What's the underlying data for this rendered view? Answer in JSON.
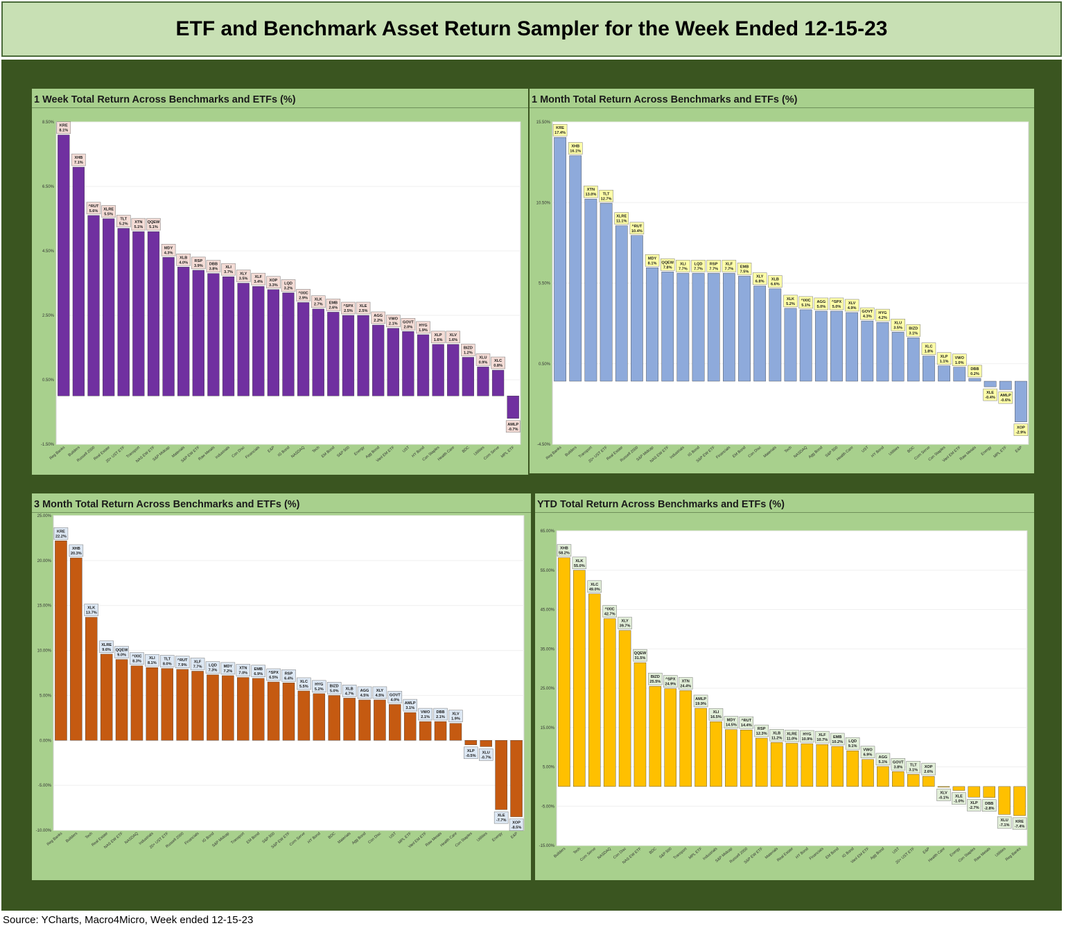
{
  "title": "ETF and Benchmark Asset Return Sampler for the Week Ended 12-15-23",
  "source": "Source: YCharts, Macro4Micro, Week ended 12-15-23",
  "colors": {
    "frame_bg": "#3a5520",
    "panel_bg": "#a8d08d",
    "header_bg": "#c8e0b4"
  },
  "chart_data": [
    {
      "type": "bar",
      "title": "1 Week Total Return Across Benchmarks and ETFs (%)",
      "bar_color": "#7030a0",
      "label_bg": "#f4dcd6",
      "yticks": [
        "8.50%",
        "6.50%",
        "4.50%",
        "2.50%",
        "0.50%",
        "-1.50%"
      ],
      "ylim": [
        -1.5,
        8.5
      ],
      "categories": [
        "Reg Banks",
        "Builders",
        "Russell 2000",
        "Real Estate",
        "20+ UST ETF",
        "Transport",
        "NAS EW ETF",
        "S&P Midcap",
        "Materials",
        "S&P EW ETF",
        "Raw Metals",
        "Industrials",
        "Con Disc",
        "Financials",
        "E&P",
        "IG Bond",
        "NASDAQ",
        "Tech",
        "EM Bond",
        "S&P 500",
        "Energy",
        "Agg Bond",
        "Vanl EM ETF",
        "UST",
        "HY Bond",
        "Con Staples",
        "Health Care",
        "BDC",
        "Utilities",
        "Com Serve",
        "MPL ETF"
      ],
      "tickers": [
        "KRE",
        "XHB",
        "^RUT",
        "XLRE",
        "TLT",
        "XTN",
        "QQEW",
        "MDY",
        "XLB",
        "RSP",
        "DBB",
        "XLI",
        "XLY",
        "XLF",
        "XOP",
        "LQD",
        "^IXIC",
        "XLK",
        "EMB",
        "^SPX",
        "XLE",
        "AGG",
        "VWO",
        "GOVT",
        "HYG",
        "XLP",
        "XLV",
        "BIZD",
        "XLU",
        "XLC",
        "AMLP"
      ],
      "values": [
        8.1,
        7.1,
        5.6,
        5.5,
        5.2,
        5.1,
        5.1,
        4.3,
        4.0,
        3.9,
        3.8,
        3.7,
        3.5,
        3.4,
        3.3,
        3.2,
        2.9,
        2.7,
        2.6,
        2.5,
        2.5,
        2.2,
        2.1,
        2.0,
        1.9,
        1.6,
        1.6,
        1.2,
        0.9,
        0.8,
        -0.7
      ],
      "value_labels": [
        "8.1%",
        "7.1%",
        "5.6%",
        "5.5%",
        "5.2%",
        "5.1%",
        "5.1%",
        "4.3%",
        "4.0%",
        "3.9%",
        "3.8%",
        "3.7%",
        "3.5%",
        "3.4%",
        "3.3%",
        "3.2%",
        "2.9%",
        "2.7%",
        "2.6%",
        "2.5%",
        "2.5%",
        "2.2%",
        "2.1%",
        "2.0%",
        "1.9%",
        "1.6%",
        "1.6%",
        "1.2%",
        "0.9%",
        "0.8%",
        "-0.7%"
      ]
    },
    {
      "type": "bar",
      "title": "1 Month Total Return Across Benchmarks and ETFs (%)",
      "bar_color": "#8eaadb",
      "label_bg": "#ffffa8",
      "yticks": [
        "15.50%",
        "10.50%",
        "5.50%",
        "0.50%",
        "-4.50%"
      ],
      "ylim": [
        -4.5,
        18.5
      ],
      "categories": [
        "Reg Banks",
        "Builders",
        "Transport",
        "20+ UST ETF",
        "Real Estate",
        "Russell 2000",
        "S&P Midcap",
        "NAS EW ETF",
        "Industrials",
        "IG Bond",
        "S&P EW ETF",
        "Financials",
        "EM Bond",
        "Con Disc",
        "Materials",
        "Tech",
        "NASDAQ",
        "Agg Bond",
        "S&P 500",
        "Health Care",
        "UST",
        "HY Bond",
        "Utilities",
        "BDC",
        "Com Serve",
        "Con Staples",
        "Vanl EM ETF",
        "Raw Metals",
        "Energy",
        "MPL ETF",
        "E&P"
      ],
      "tickers": [
        "KRE",
        "XHB",
        "XTN",
        "TLT",
        "XLRE",
        "^RUT",
        "MDY",
        "QQEW",
        "XLI",
        "LQD",
        "RSP",
        "XLF",
        "EMB",
        "XLY",
        "XLB",
        "XLK",
        "^IXIC",
        "AGG",
        "^SPX",
        "XLV",
        "GOVT",
        "HYG",
        "XLU",
        "BIZD",
        "XLC",
        "XLP",
        "VWO",
        "DBB",
        "XLE",
        "AMLP",
        "XOP"
      ],
      "values": [
        17.4,
        16.1,
        13.0,
        12.7,
        11.1,
        10.4,
        8.1,
        7.8,
        7.7,
        7.7,
        7.7,
        7.7,
        7.5,
        6.8,
        6.6,
        5.2,
        5.1,
        5.0,
        5.0,
        4.9,
        4.3,
        4.2,
        3.5,
        3.1,
        1.8,
        1.1,
        1.0,
        0.2,
        -0.4,
        -0.6,
        -2.9
      ],
      "value_labels": [
        "17.4%",
        "16.1%",
        "13.0%",
        "12.7%",
        "11.1%",
        "10.4%",
        "8.1%",
        "7.8%",
        "7.7%",
        "7.7%",
        "7.7%",
        "7.7%",
        "7.5%",
        "6.8%",
        "6.6%",
        "5.2%",
        "5.1%",
        "5.0%",
        "5.0%",
        "4.9%",
        "4.3%",
        "4.2%",
        "3.5%",
        "3.1%",
        "1.8%",
        "1.1%",
        "1.0%",
        "0.2%",
        "-0.4%",
        "-0.6%",
        "-2.9%"
      ]
    },
    {
      "type": "bar",
      "title": "3 Month Total Return Across Benchmarks and ETFs (%)",
      "bar_color": "#c55a11",
      "label_bg": "#dde8f4",
      "yticks": [
        "25.00%",
        "20.00%",
        "15.00%",
        "10.00%",
        "5.00%",
        "0.00%",
        "-5.00%",
        "-10.00%"
      ],
      "ylim": [
        -10,
        25
      ],
      "categories": [
        "Reg Banks",
        "Builders",
        "Tech",
        "Real Estate",
        "NAS EW ETF",
        "NASDAQ",
        "Industrials",
        "20+ UST ETF",
        "Russell 2000",
        "Financials",
        "IG Bond",
        "S&P Midcap",
        "Transport",
        "EM Bond",
        "S&P 500",
        "S&P EW ETF",
        "Com Serve",
        "HY Bond",
        "BDC",
        "Materials",
        "Agg Bond",
        "Con Disc",
        "UST",
        "MPL ETF",
        "Vanl EM ETF",
        "Raw Metals",
        "Health Care",
        "Con Staples",
        "Utilities",
        "Energy",
        "E&P"
      ],
      "tickers": [
        "KRE",
        "XHB",
        "XLK",
        "XLRE",
        "QQEW",
        "^IXIC",
        "XLI",
        "TLT",
        "^RUT",
        "XLF",
        "LQD",
        "MDY",
        "XTN",
        "EMB",
        "^SPX",
        "RSP",
        "XLC",
        "HYG",
        "BIZD",
        "XLB",
        "AGG",
        "XLY",
        "GOVT",
        "AMLP",
        "VWO",
        "DBB",
        "XLV",
        "XLP",
        "XLU",
        "XLE",
        "XOP"
      ],
      "values": [
        22.2,
        20.3,
        13.7,
        9.6,
        9.0,
        8.3,
        8.1,
        8.0,
        7.9,
        7.7,
        7.3,
        7.2,
        7.0,
        6.9,
        6.5,
        6.4,
        5.5,
        5.2,
        5.0,
        4.7,
        4.5,
        4.5,
        4.0,
        3.1,
        2.1,
        2.1,
        1.9,
        -0.5,
        -0.7,
        -7.7,
        -8.5
      ],
      "value_labels": [
        "22.2%",
        "20.3%",
        "13.7%",
        "9.6%",
        "9.0%",
        "8.3%",
        "8.1%",
        "8.0%",
        "7.9%",
        "7.7%",
        "7.3%",
        "7.2%",
        "7.0%",
        "6.9%",
        "6.5%",
        "6.4%",
        "5.5%",
        "5.2%",
        "5.0%",
        "4.7%",
        "4.5%",
        "4.5%",
        "4.0%",
        "3.1%",
        "2.1%",
        "2.1%",
        "1.9%",
        "-0.5%",
        "-0.7%",
        "-7.7%",
        "-8.5%"
      ]
    },
    {
      "type": "bar",
      "title": "YTD Total Return Across Benchmarks and ETFs (%)",
      "bar_color": "#ffc000",
      "label_bg": "#e2efd9",
      "yticks": [
        "65.00%",
        "55.00%",
        "45.00%",
        "35.00%",
        "25.00%",
        "15.00%",
        "5.00%",
        "-5.00%",
        "-15.00%"
      ],
      "ylim": [
        -15,
        65
      ],
      "categories": [
        "Builders",
        "Tech",
        "Com Serve",
        "NASDAQ",
        "Con Disc",
        "NAS EW ETF",
        "BDC",
        "S&P 500",
        "Transport",
        "MPL ETF",
        "Industrials",
        "S&P Midcap",
        "Russell 2000",
        "S&P EW ETF",
        "Materials",
        "Real Estate",
        "HY Bond",
        "Financials",
        "EM Bond",
        "IG Bond",
        "Vanl EM ETF",
        "Agg Bond",
        "UST",
        "20+ UST ETF",
        "E&P",
        "Health Care",
        "Energy",
        "Con Staples",
        "Raw Metals",
        "Utilities",
        "Reg Banks"
      ],
      "tickers": [
        "XHB",
        "XLK",
        "XLC",
        "^IXIC",
        "XLY",
        "QQEW",
        "BIZD",
        "^SPX",
        "XTN",
        "AMLP",
        "XLI",
        "MDY",
        "^RUT",
        "RSP",
        "XLB",
        "XLRE",
        "HYG",
        "XLF",
        "EMB",
        "LQD",
        "VWO",
        "AGG",
        "GOVT",
        "TLT",
        "XOP",
        "XLV",
        "XLE",
        "XLP",
        "DBB",
        "XLU",
        "KRE"
      ],
      "values": [
        58.2,
        55.0,
        49.0,
        42.7,
        39.7,
        31.5,
        25.5,
        24.9,
        24.4,
        19.9,
        16.5,
        14.5,
        14.4,
        12.3,
        11.2,
        11.0,
        10.9,
        10.7,
        10.2,
        9.1,
        6.9,
        5.1,
        3.8,
        3.1,
        2.6,
        -0.1,
        -1.0,
        -2.7,
        -2.8,
        -7.1,
        -7.4
      ],
      "value_labels": [
        "58.2%",
        "55.0%",
        "49.0%",
        "42.7%",
        "39.7%",
        "31.5%",
        "25.5%",
        "24.9%",
        "24.4%",
        "19.9%",
        "16.5%",
        "14.5%",
        "14.4%",
        "12.3%",
        "11.2%",
        "11.0%",
        "10.9%",
        "10.7%",
        "10.2%",
        "9.1%",
        "6.9%",
        "5.1%",
        "3.8%",
        "3.1%",
        "2.6%",
        "-0.1%",
        "-1.0%",
        "-2.7%",
        "-2.8%",
        "-7.1%",
        "-7.4%"
      ]
    }
  ]
}
